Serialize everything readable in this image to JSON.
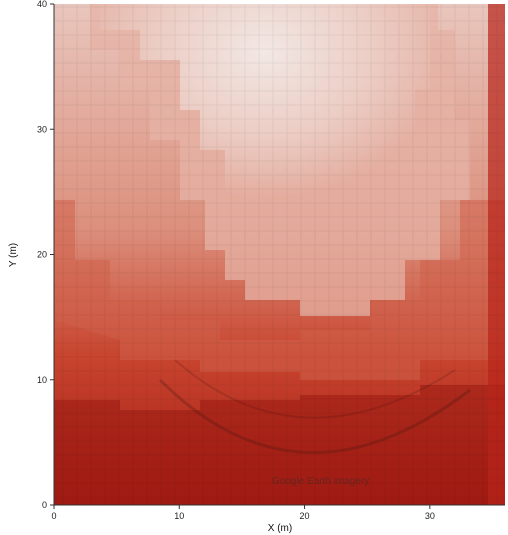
{
  "chart_data": {
    "type": "heatmap",
    "xlabel": "X (m)",
    "ylabel": "Y (m)",
    "xlim": [
      0,
      36
    ],
    "ylim": [
      0,
      40
    ],
    "x_ticks": [
      0,
      10,
      20,
      30
    ],
    "y_ticks": [
      0,
      10,
      20,
      30,
      40
    ],
    "grid": false,
    "overlay": "aerial photograph of buildings and roads",
    "color_low": "#f3e4e0",
    "color_high": "#a11a12",
    "zones": [
      {
        "level": 1,
        "description": "highest values along the bottom band",
        "y_range": [
          0,
          9
        ]
      },
      {
        "level": 2,
        "description": "dark red on left and bottom flanks",
        "y_range": [
          9,
          14
        ]
      },
      {
        "level": 3,
        "description": "medium red arc",
        "y_range": [
          14,
          20
        ]
      },
      {
        "level": 4,
        "description": "pale pink interior",
        "y_range": [
          20,
          35
        ]
      },
      {
        "level": 5,
        "description": "lowest values, near-white top center",
        "y_range": [
          32,
          40
        ]
      }
    ]
  },
  "watermark": "Google Earth imagery"
}
